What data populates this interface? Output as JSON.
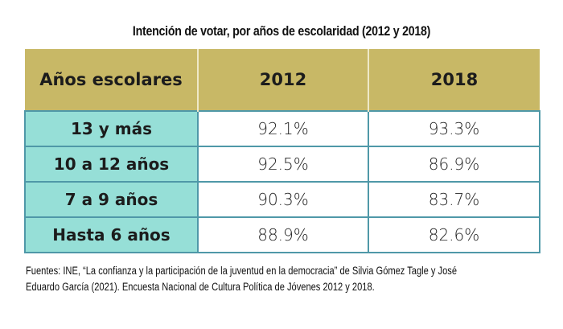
{
  "title": "Intención de votar, por años de escolaridad (2012 y 2018)",
  "table": {
    "headers": [
      "Años escolares",
      "2012",
      "2018"
    ],
    "rows": [
      {
        "label": "13 y más",
        "v2012": "92.1%",
        "v2018": "93.3%"
      },
      {
        "label": "10 a 12 años",
        "v2012": "92.5%",
        "v2018": "86.9%"
      },
      {
        "label": "7 a 9 años",
        "v2012": "90.3%",
        "v2018": "83.7%"
      },
      {
        "label": "Hasta 6 años",
        "v2012": "88.9%",
        "v2018": "82.6%"
      }
    ]
  },
  "source": {
    "line1": "Fuentes: INE, “La confianza y la participación de la juventud en la democracia” de Silvia Gómez Tagle y José",
    "line2": "Eduardo García (2021). Encuesta Nacional de Cultura Política de Jóvenes 2012 y 2018."
  },
  "colors": {
    "header_bg": "#c8b866",
    "label_bg": "#96dfd7",
    "border": "#4f98a8"
  }
}
